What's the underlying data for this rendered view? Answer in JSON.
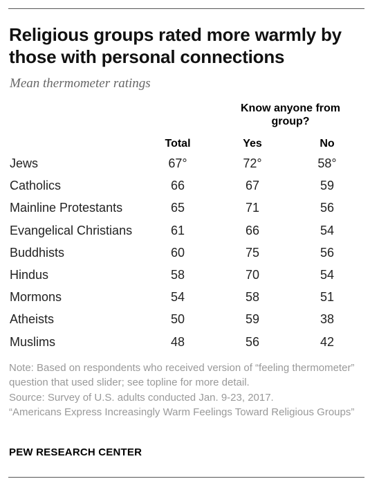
{
  "title": "Religious groups rated more warmly by those with personal connections",
  "subtitle": "Mean thermometer ratings",
  "group_header": "Know anyone from group?",
  "columns": {
    "total": "Total",
    "yes": "Yes",
    "no": "No"
  },
  "chart_data": {
    "type": "table",
    "title": "Religious groups rated more warmly by those with personal connections",
    "subtitle": "Mean thermometer ratings",
    "columns": [
      "Total",
      "Yes",
      "No"
    ],
    "column_group": "Know anyone from group?",
    "rows": [
      {
        "label": "Jews",
        "total": "67°",
        "yes": "72°",
        "no": "58°"
      },
      {
        "label": "Catholics",
        "total": "66",
        "yes": "67",
        "no": "59"
      },
      {
        "label": "Mainline Protestants",
        "total": "65",
        "yes": "71",
        "no": "56"
      },
      {
        "label": "Evangelical Christians",
        "total": "61",
        "yes": "66",
        "no": "54"
      },
      {
        "label": "Buddhists",
        "total": "60",
        "yes": "75",
        "no": "56"
      },
      {
        "label": "Hindus",
        "total": "58",
        "yes": "70",
        "no": "54"
      },
      {
        "label": "Mormons",
        "total": "54",
        "yes": "58",
        "no": "51"
      },
      {
        "label": "Atheists",
        "total": "50",
        "yes": "59",
        "no": "38"
      },
      {
        "label": "Muslims",
        "total": "48",
        "yes": "56",
        "no": "42"
      }
    ]
  },
  "note": "Note: Based on respondents who received version of “feeling thermometer” question that used slider; see topline for more detail.",
  "source": "Source: Survey of U.S. adults conducted Jan. 9-23, 2017.",
  "report": "“Americans Express Increasingly Warm Feelings Toward Religious Groups”",
  "brand": "PEW RESEARCH CENTER"
}
